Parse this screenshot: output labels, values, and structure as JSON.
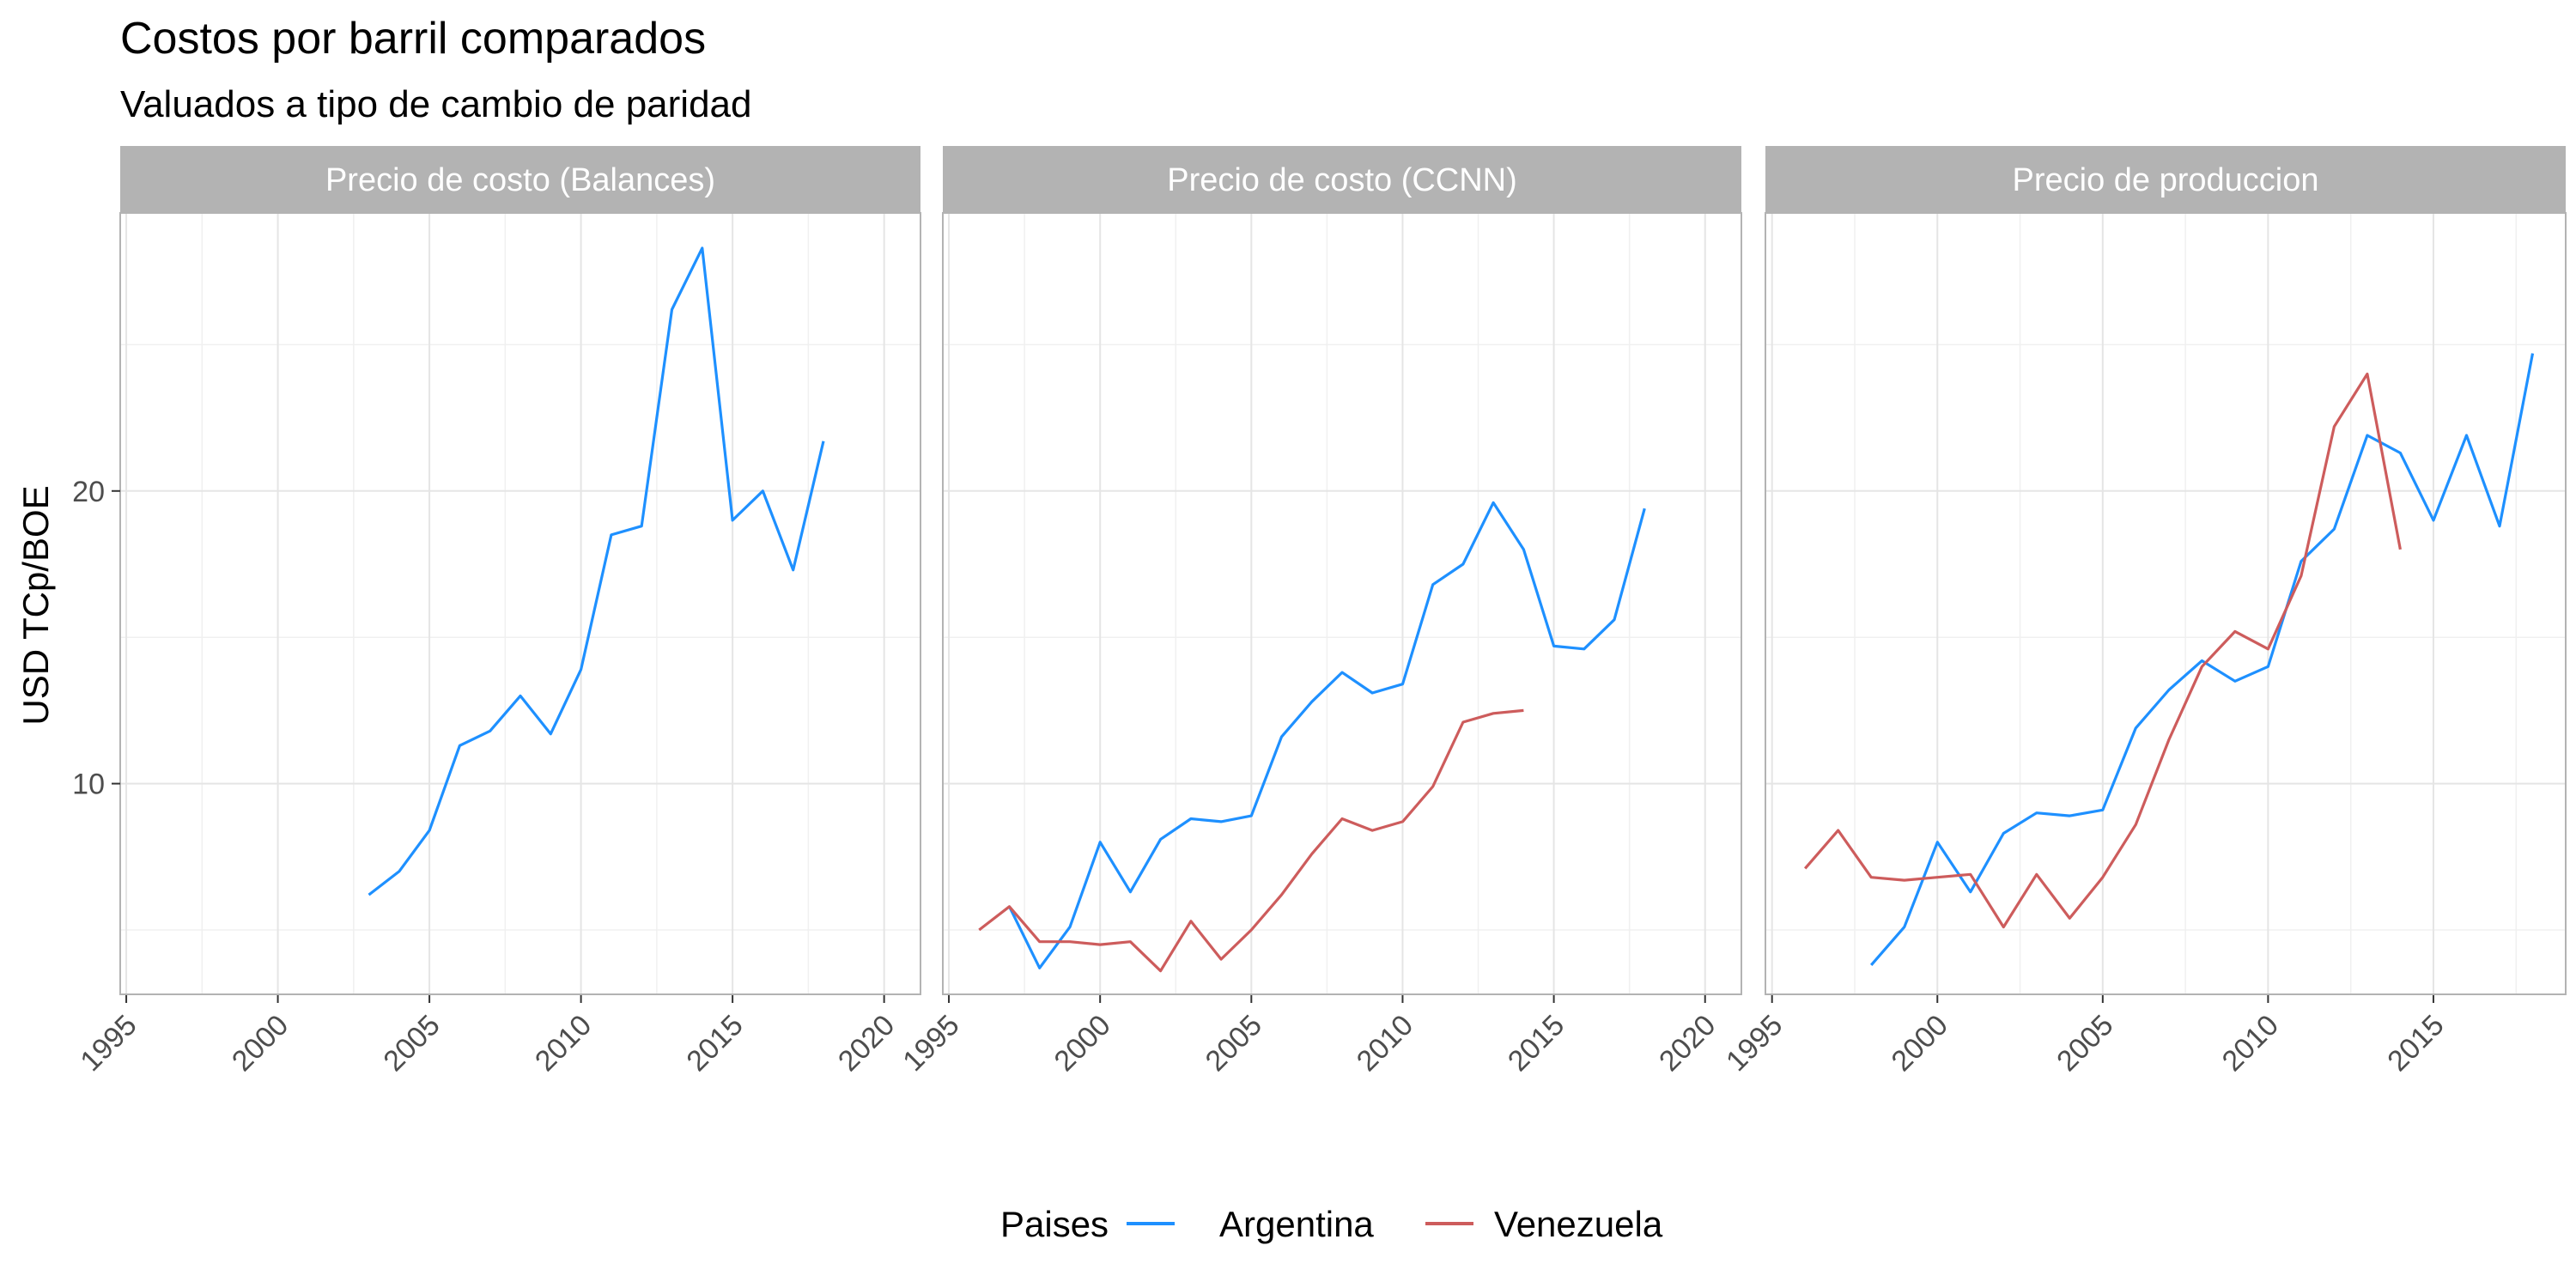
{
  "chart_data": {
    "type": "line",
    "title": "Costos por barril comparados",
    "subtitle": "Valuados a tipo de cambio de paridad",
    "ylabel": "USD TCp/BOE",
    "xlabel": "",
    "legend": {
      "title": "Paises",
      "position": "bottom",
      "entries": [
        {
          "name": "Argentina",
          "color": "#1E90FF"
        },
        {
          "name": "Venezuela",
          "color": "#CD5C5C"
        }
      ]
    },
    "grid": true,
    "y_ticks": [
      10,
      20
    ],
    "ylim": [
      2.8,
      29.5
    ],
    "panels": [
      {
        "title": "Precio de costo (Balances)",
        "xlim": [
          1994.8,
          2021.2
        ],
        "x_ticks": [
          1995,
          2000,
          2005,
          2010,
          2015,
          2020
        ],
        "series": [
          {
            "name": "Argentina",
            "color": "#1E90FF",
            "x": [
              2003,
              2004,
              2005,
              2006,
              2007,
              2008,
              2009,
              2010,
              2011,
              2012,
              2013,
              2014,
              2015,
              2016,
              2017,
              2018
            ],
            "y": [
              6.2,
              7.0,
              8.4,
              11.3,
              11.8,
              13.0,
              11.7,
              13.9,
              18.5,
              18.8,
              26.2,
              28.3,
              19.0,
              20.0,
              17.3,
              21.7
            ]
          }
        ]
      },
      {
        "title": "Precio de costo (CCNN)",
        "xlim": [
          1994.8,
          2021.2
        ],
        "x_ticks": [
          1995,
          2000,
          2005,
          2010,
          2015,
          2020
        ],
        "series": [
          {
            "name": "Argentina",
            "color": "#1E90FF",
            "x": [
              1997,
              1998,
              1999,
              2000,
              2001,
              2002,
              2003,
              2004,
              2005,
              2006,
              2007,
              2008,
              2009,
              2010,
              2011,
              2012,
              2013,
              2014,
              2015,
              2016,
              2017,
              2018
            ],
            "y": [
              5.8,
              3.7,
              5.1,
              8.0,
              6.3,
              8.1,
              8.8,
              8.7,
              8.9,
              11.6,
              12.8,
              13.8,
              13.1,
              13.4,
              16.8,
              17.5,
              19.6,
              18.0,
              14.7,
              14.6,
              15.6,
              19.4
            ]
          },
          {
            "name": "Venezuela",
            "color": "#CD5C5C",
            "x": [
              1996,
              1997,
              1998,
              1999,
              2000,
              2001,
              2002,
              2003,
              2004,
              2005,
              2006,
              2007,
              2008,
              2009,
              2010,
              2011,
              2012,
              2013,
              2014
            ],
            "y": [
              5.0,
              5.8,
              4.6,
              4.6,
              4.5,
              4.6,
              3.6,
              5.3,
              4.0,
              5.0,
              6.2,
              7.6,
              8.8,
              8.4,
              8.7,
              9.9,
              12.1,
              12.4,
              12.5
            ]
          }
        ]
      },
      {
        "title": "Precio de produccion",
        "xlim": [
          1994.8,
          2019.0
        ],
        "x_ticks": [
          1995,
          2000,
          2005,
          2010,
          2015
        ],
        "series": [
          {
            "name": "Argentina",
            "color": "#1E90FF",
            "x": [
              1998,
              1999,
              2000,
              2001,
              2002,
              2003,
              2004,
              2005,
              2006,
              2007,
              2008,
              2009,
              2010,
              2011,
              2012,
              2013,
              2014,
              2015,
              2016,
              2017,
              2018
            ],
            "y": [
              3.8,
              5.1,
              8.0,
              6.3,
              8.3,
              9.0,
              8.9,
              9.1,
              11.9,
              13.2,
              14.2,
              13.5,
              14.0,
              17.6,
              18.7,
              21.9,
              21.3,
              19.0,
              21.9,
              18.8,
              24.7
            ]
          },
          {
            "name": "Venezuela",
            "color": "#CD5C5C",
            "x": [
              1996,
              1997,
              1998,
              1999,
              2000,
              2001,
              2002,
              2003,
              2004,
              2005,
              2006,
              2007,
              2008,
              2009,
              2010,
              2011,
              2012,
              2013,
              2014
            ],
            "y": [
              7.1,
              8.4,
              6.8,
              6.7,
              6.8,
              6.9,
              5.1,
              6.9,
              5.4,
              6.8,
              8.6,
              11.5,
              14.0,
              15.2,
              14.6,
              17.1,
              22.2,
              24.0,
              18.0
            ]
          }
        ]
      }
    ]
  }
}
